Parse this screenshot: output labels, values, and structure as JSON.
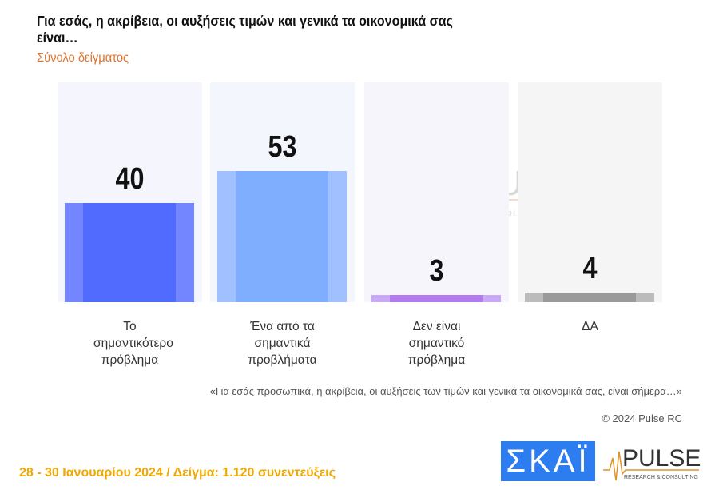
{
  "header": {
    "title": "Για εσάς, η ακρίβεια, οι αυξήσεις τιμών και γενικά τα οικονομικά σας είναι…",
    "subtitle": "Σύνολο δείγματος"
  },
  "chart_data": {
    "type": "bar",
    "title": "Για εσάς, η ακρίβεια, οι αυξήσεις τιμών και γενικά τα οικονομικά σας είναι…",
    "categories": [
      "Το σημαντικότερο πρόβλημα",
      "Ένα από τα σημαντικά προβλήματα",
      "Δεν είναι σημαντικό πρόβλημα",
      "ΔΑ"
    ],
    "values": [
      40,
      53,
      3,
      4
    ],
    "ylim": [
      0,
      88
    ],
    "colors": [
      "#526bff",
      "#80aeff",
      "#b07cf0",
      "#9a9a9a"
    ],
    "side_colors": [
      "#7386ff",
      "#a0c0ff",
      "#c9a8f5",
      "#bbbbbb"
    ],
    "bg_colors": [
      "#f4f5fd",
      "#f4f6fd",
      "#f7f5fc",
      "#f5f5f6"
    ]
  },
  "footer": {
    "quote": "«Για εσάς προσωπικά, η ακρίβεια, οι αυξήσεις των τιμών και γενικά τα οικονομικά σας, είναι σήμερα…»",
    "copyright": "© 2024 Pulse RC",
    "fieldwork": "28 - 30  Ιανουαρίου  2024  /  Δείγμα:  1.120 συνεντεύξεις"
  },
  "logos": {
    "skai": "ΣΚΑΪ",
    "pulse": "PULSE",
    "pulse_tag": "RESEARCH & CONSULTING"
  }
}
